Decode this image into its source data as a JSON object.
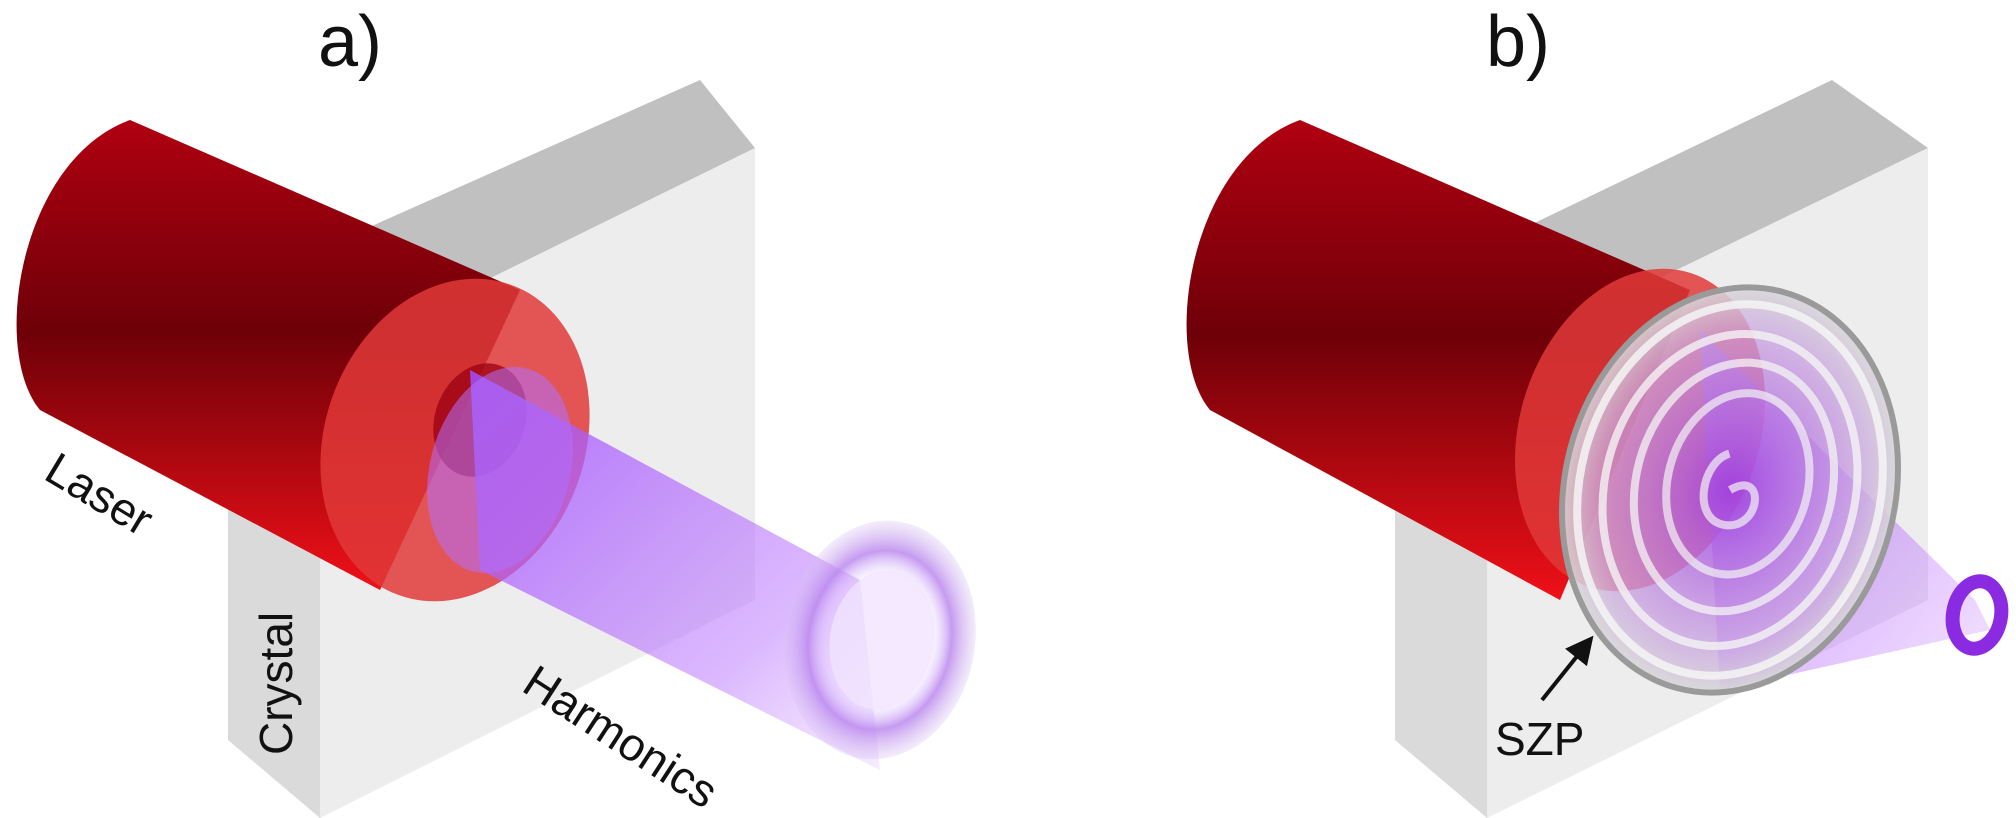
{
  "panels": {
    "a": {
      "label": "a)",
      "tags": {
        "laser": "Laser",
        "crystal": "Crystal",
        "harmonics": "Harmonics"
      }
    },
    "b": {
      "label": "b)",
      "tags": {
        "szp": "SZP"
      }
    }
  },
  "colors": {
    "laser_red": "#c8000a",
    "laser_dark": "#7a0008",
    "crystal_face": "#e6e6e6",
    "crystal_top": "#bdbdbd",
    "harmonics_violet": "#b066ff",
    "zone_plate_silver": "#cfcfcf"
  }
}
